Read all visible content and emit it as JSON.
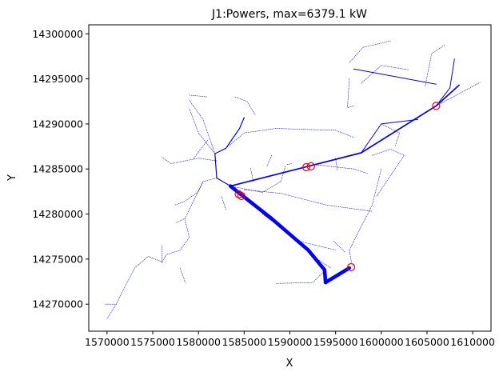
{
  "chart_data": {
    "type": "line",
    "title": "J1:Powers, max=6379.1 kW",
    "xlabel": "X",
    "ylabel": "Y",
    "xlim": [
      1568000,
      1612000
    ],
    "ylim": [
      14267000,
      14301000
    ],
    "xticks": [
      1570000,
      1575000,
      1580000,
      1585000,
      1590000,
      1595000,
      1600000,
      1605000,
      1610000
    ],
    "xtick_labels": [
      "1570000",
      "1575000",
      "1580000",
      "1585000",
      "1590000",
      "1595000",
      "1600000",
      "1605000",
      "1610000"
    ],
    "yticks": [
      14270000,
      14275000,
      14280000,
      14285000,
      14290000,
      14295000,
      14300000
    ],
    "ytick_labels": [
      "14270000",
      "14275000",
      "14280000",
      "14285000",
      "14290000",
      "14295000",
      "14300000"
    ],
    "grid": false,
    "colors": {
      "line": "#0000ff",
      "marker": "#ff0000"
    },
    "series": [
      {
        "style": "heavy",
        "width": 4.5,
        "points": [
          [
            1596500,
            14274000
          ],
          [
            1594200,
            14272600
          ],
          [
            1593900,
            14272400
          ],
          [
            1593800,
            14273800
          ],
          [
            1592000,
            14276000
          ],
          [
            1588000,
            14279500
          ],
          [
            1584500,
            14282300
          ],
          [
            1583500,
            14283100
          ]
        ]
      },
      {
        "style": "medium",
        "width": 1.7,
        "points": [
          [
            1583500,
            14283100
          ],
          [
            1597800,
            14286800
          ],
          [
            1606000,
            14292000
          ],
          [
            1608500,
            14294300
          ]
        ]
      },
      {
        "style": "medium",
        "width": 1.2,
        "points": [
          [
            1583500,
            14283100
          ],
          [
            1582000,
            14284000
          ],
          [
            1581800,
            14286700
          ],
          [
            1583000,
            14287300
          ],
          [
            1584500,
            14289500
          ],
          [
            1585000,
            14290700
          ]
        ]
      },
      {
        "style": "thin",
        "width": 1,
        "points": [
          [
            1597800,
            14286800
          ],
          [
            1600000,
            14290000
          ],
          [
            1604000,
            14290500
          ]
        ]
      },
      {
        "style": "thin",
        "width": 1,
        "points": [
          [
            1606000,
            14292000
          ],
          [
            1607500,
            14294000
          ],
          [
            1608000,
            14297200
          ]
        ]
      },
      {
        "style": "thin",
        "width": 1,
        "points": [
          [
            1597000,
            14296100
          ],
          [
            1606000,
            14294400
          ]
        ]
      },
      {
        "style": "dotted",
        "width": 0.6,
        "points": [
          [
            1606000,
            14292000
          ],
          [
            1610800,
            14294600
          ]
        ]
      },
      {
        "style": "dotted",
        "width": 0.6,
        "points": [
          [
            1596500,
            14296800
          ],
          [
            1598000,
            14298500
          ],
          [
            1601000,
            14299200
          ]
        ]
      },
      {
        "style": "dotted",
        "width": 0.6,
        "points": [
          [
            1597800,
            14294500
          ],
          [
            1600000,
            14296500
          ],
          [
            1603000,
            14296000
          ]
        ]
      },
      {
        "style": "dotted",
        "width": 0.6,
        "points": [
          [
            1596500,
            14295000
          ],
          [
            1596300,
            14291800
          ],
          [
            1597000,
            14292000
          ]
        ]
      },
      {
        "style": "dotted",
        "width": 0.6,
        "points": [
          [
            1604800,
            14294200
          ],
          [
            1605500,
            14297800
          ],
          [
            1607000,
            14298800
          ]
        ]
      },
      {
        "style": "dotted",
        "width": 0.6,
        "points": [
          [
            1600000,
            14290000
          ],
          [
            1602000,
            14289000
          ],
          [
            1601500,
            14287500
          ]
        ]
      },
      {
        "style": "dotted",
        "width": 0.6,
        "points": [
          [
            1591500,
            14289400
          ],
          [
            1595000,
            14289300
          ],
          [
            1597000,
            14288500
          ]
        ]
      },
      {
        "style": "dotted",
        "width": 0.6,
        "points": [
          [
            1583000,
            14287300
          ],
          [
            1585000,
            14289000
          ],
          [
            1588500,
            14289500
          ],
          [
            1591500,
            14289400
          ]
        ]
      },
      {
        "style": "dotted",
        "width": 0.6,
        "points": [
          [
            1584000,
            14293000
          ],
          [
            1585300,
            14292500
          ],
          [
            1586200,
            14291000
          ]
        ]
      },
      {
        "style": "dotted",
        "width": 0.6,
        "points": [
          [
            1581800,
            14286700
          ],
          [
            1580000,
            14289000
          ],
          [
            1579000,
            14291700
          ]
        ]
      },
      {
        "style": "dotted",
        "width": 0.6,
        "points": [
          [
            1579000,
            14292600
          ],
          [
            1580500,
            14290500
          ],
          [
            1581800,
            14286700
          ]
        ]
      },
      {
        "style": "dotted",
        "width": 0.6,
        "points": [
          [
            1579000,
            14293200
          ],
          [
            1581000,
            14293000
          ]
        ]
      },
      {
        "style": "dotted",
        "width": 0.6,
        "points": [
          [
            1582000,
            14285900
          ],
          [
            1580000,
            14286200
          ],
          [
            1577000,
            14285600
          ],
          [
            1576000,
            14286300
          ]
        ]
      },
      {
        "style": "dotted",
        "width": 0.6,
        "points": [
          [
            1579500,
            14286200
          ],
          [
            1581000,
            14288200
          ]
        ]
      },
      {
        "style": "dotted",
        "width": 0.6,
        "points": [
          [
            1582000,
            14284000
          ],
          [
            1580500,
            14283600
          ],
          [
            1580000,
            14282500
          ],
          [
            1578500,
            14281400
          ],
          [
            1577400,
            14281000
          ]
        ]
      },
      {
        "style": "dotted",
        "width": 0.6,
        "points": [
          [
            1580500,
            14283600
          ],
          [
            1579000,
            14280500
          ],
          [
            1578500,
            14279500
          ],
          [
            1577500,
            14279000
          ]
        ]
      },
      {
        "style": "dotted",
        "width": 0.6,
        "points": [
          [
            1578500,
            14279500
          ],
          [
            1579000,
            14277400
          ],
          [
            1578000,
            14276000
          ],
          [
            1576500,
            14275500
          ],
          [
            1576000,
            14274700
          ],
          [
            1574500,
            14275300
          ],
          [
            1573000,
            14274000
          ],
          [
            1572000,
            14272000
          ],
          [
            1571000,
            14270000
          ],
          [
            1569800,
            14270000
          ]
        ]
      },
      {
        "style": "dotted",
        "width": 0.6,
        "points": [
          [
            1571000,
            14270000
          ],
          [
            1570000,
            14268400
          ]
        ]
      },
      {
        "style": "dotted",
        "width": 0.6,
        "points": [
          [
            1576000,
            14276500
          ],
          [
            1576000,
            14274500
          ]
        ]
      },
      {
        "style": "dotted",
        "width": 0.6,
        "points": [
          [
            1578000,
            14274000
          ],
          [
            1578600,
            14272300
          ]
        ]
      },
      {
        "style": "dotted",
        "width": 0.6,
        "points": [
          [
            1583000,
            14280500
          ],
          [
            1582500,
            14282000
          ]
        ]
      },
      {
        "style": "dotted",
        "width": 0.6,
        "points": [
          [
            1584000,
            14283000
          ],
          [
            1587000,
            14282400
          ],
          [
            1589000,
            14283600
          ]
        ]
      },
      {
        "style": "dotted",
        "width": 0.6,
        "points": [
          [
            1585000,
            14282700
          ],
          [
            1589000,
            14282300
          ],
          [
            1594000,
            14281000
          ],
          [
            1599000,
            14280300
          ]
        ]
      },
      {
        "style": "dotted",
        "width": 0.6,
        "points": [
          [
            1592500,
            14285500
          ],
          [
            1597000,
            14285000
          ],
          [
            1598500,
            14284500
          ]
        ]
      },
      {
        "style": "dotted",
        "width": 0.6,
        "points": [
          [
            1595000,
            14286200
          ],
          [
            1595200,
            14284800
          ]
        ]
      },
      {
        "style": "dotted",
        "width": 0.6,
        "points": [
          [
            1589700,
            14285500
          ],
          [
            1590300,
            14285600
          ]
        ]
      },
      {
        "style": "dotted",
        "width": 0.6,
        "points": [
          [
            1589500,
            14285300
          ],
          [
            1589000,
            14283600
          ]
        ]
      },
      {
        "style": "dotted",
        "width": 0.6,
        "points": [
          [
            1587500,
            14285300
          ],
          [
            1588000,
            14286500
          ]
        ]
      },
      {
        "style": "dotted",
        "width": 0.6,
        "points": [
          [
            1585700,
            14285100
          ],
          [
            1586000,
            14283600
          ]
        ]
      },
      {
        "style": "dotted",
        "width": 0.6,
        "points": [
          [
            1600000,
            14285000
          ],
          [
            1599000,
            14281000
          ],
          [
            1596500,
            14276000
          ],
          [
            1596800,
            14274300
          ]
        ]
      },
      {
        "style": "dotted",
        "width": 0.6,
        "points": [
          [
            1599500,
            14282000
          ],
          [
            1602500,
            14286500
          ]
        ]
      },
      {
        "style": "dotted",
        "width": 0.6,
        "points": [
          [
            1599000,
            14286500
          ],
          [
            1601000,
            14287200
          ],
          [
            1602500,
            14286500
          ]
        ]
      },
      {
        "style": "dotted",
        "width": 0.6,
        "points": [
          [
            1587000,
            14280000
          ],
          [
            1591000,
            14277000
          ],
          [
            1595000,
            14276000
          ]
        ]
      },
      {
        "style": "dotted",
        "width": 0.6,
        "points": [
          [
            1588500,
            14272300
          ],
          [
            1592500,
            14272400
          ],
          [
            1593600,
            14273500
          ]
        ]
      },
      {
        "style": "dotted",
        "width": 0.6,
        "points": [
          [
            1594800,
            14277000
          ],
          [
            1596000,
            14275800
          ]
        ]
      },
      {
        "style": "dotted",
        "width": 0.6,
        "points": [
          [
            1593000,
            14275000
          ],
          [
            1594500,
            14274000
          ]
        ]
      }
    ],
    "markers": [
      [
        1584400,
        14282200
      ],
      [
        1584700,
        14282000
      ],
      [
        1591800,
        14285200
      ],
      [
        1592300,
        14285300
      ],
      [
        1606000,
        14292000
      ],
      [
        1596700,
        14274100
      ]
    ]
  }
}
